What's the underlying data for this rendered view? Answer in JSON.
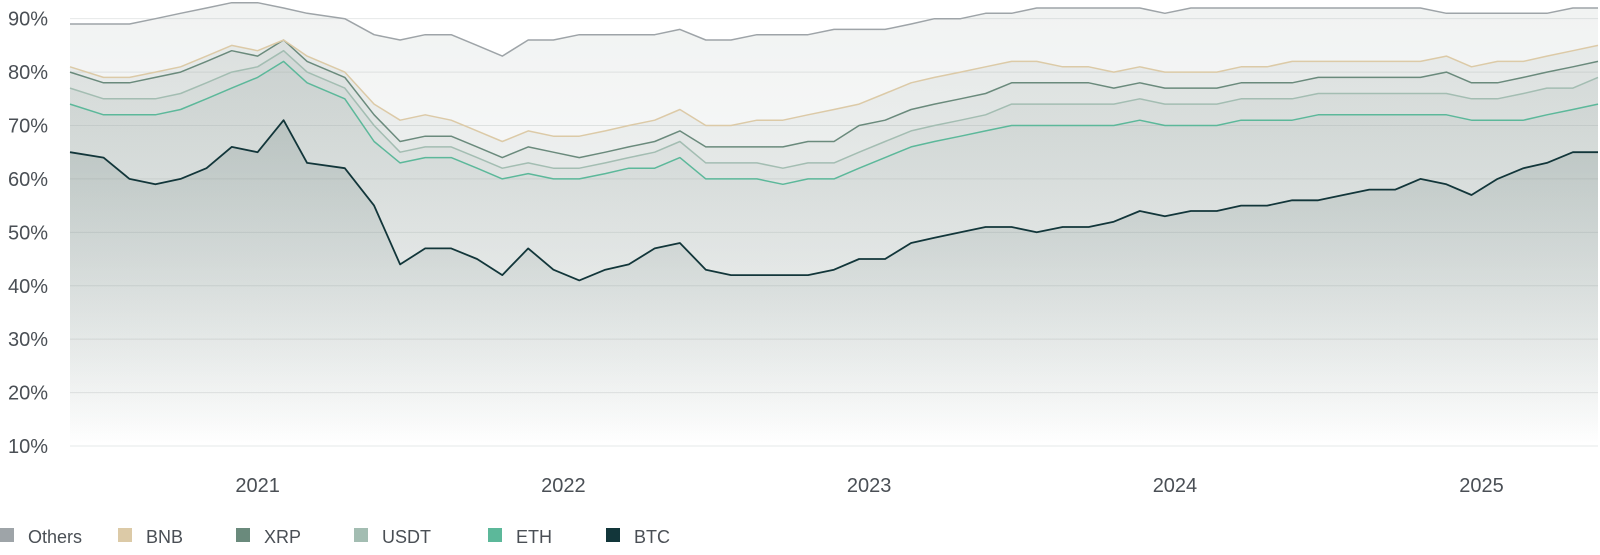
{
  "chart_data": {
    "type": "area",
    "title": "",
    "xlabel": "",
    "ylabel": "",
    "ylim": [
      10,
      92
    ],
    "y_ticks": [
      "10%",
      "20%",
      "30%",
      "40%",
      "50%",
      "60%",
      "70%",
      "80%",
      "90%"
    ],
    "y_tick_values": [
      10,
      20,
      30,
      40,
      50,
      60,
      70,
      80,
      90
    ],
    "x_ticks": [
      "2021",
      "2022",
      "2023",
      "2024",
      "2025"
    ],
    "x_tick_values": [
      "2021-01-01",
      "2022-01-01",
      "2023-01-01",
      "2024-01-01",
      "2025-01-01"
    ],
    "xlim": [
      "2020-05-22",
      "2025-05-20"
    ],
    "grid": true,
    "legend_position": "bottom-left",
    "x": [
      "2020-05-22",
      "2020-07-01",
      "2020-08-01",
      "2020-09-01",
      "2020-10-01",
      "2020-11-01",
      "2020-12-01",
      "2021-01-01",
      "2021-02-01",
      "2021-03-01",
      "2021-04-15",
      "2021-05-20",
      "2021-06-20",
      "2021-07-20",
      "2021-08-20",
      "2021-09-20",
      "2021-10-20",
      "2021-11-20",
      "2021-12-20",
      "2022-01-20",
      "2022-02-20",
      "2022-03-20",
      "2022-04-20",
      "2022-05-20",
      "2022-06-20",
      "2022-07-20",
      "2022-08-20",
      "2022-09-20",
      "2022-10-20",
      "2022-11-20",
      "2022-12-20",
      "2023-01-20",
      "2023-02-20",
      "2023-03-20",
      "2023-04-20",
      "2023-05-20",
      "2023-06-20",
      "2023-07-20",
      "2023-08-20",
      "2023-09-20",
      "2023-10-20",
      "2023-11-20",
      "2023-12-20",
      "2024-01-20",
      "2024-02-20",
      "2024-03-20",
      "2024-04-20",
      "2024-05-20",
      "2024-06-20",
      "2024-07-20",
      "2024-08-20",
      "2024-09-20",
      "2024-10-20",
      "2024-11-20",
      "2024-12-20",
      "2025-01-20",
      "2025-02-20",
      "2025-03-20",
      "2025-04-20",
      "2025-05-20"
    ],
    "series": [
      {
        "name": "BTC",
        "color": "#12363a",
        "values": [
          65,
          64,
          60,
          59,
          60,
          62,
          66,
          65,
          71,
          63,
          62,
          55,
          44,
          47,
          47,
          45,
          42,
          47,
          43,
          41,
          43,
          44,
          47,
          48,
          43,
          42,
          42,
          42,
          42,
          43,
          45,
          45,
          48,
          49,
          50,
          51,
          51,
          50,
          51,
          51,
          52,
          54,
          53,
          54,
          54,
          55,
          55,
          56,
          56,
          57,
          58,
          58,
          60,
          59,
          57,
          60,
          62,
          63,
          65,
          65
        ]
      },
      {
        "name": "ETH",
        "color": "#5cb89a",
        "values": [
          74,
          72,
          72,
          72,
          73,
          75,
          77,
          79,
          82,
          78,
          75,
          67,
          63,
          64,
          64,
          62,
          60,
          61,
          60,
          60,
          61,
          62,
          62,
          64,
          60,
          60,
          60,
          59,
          60,
          60,
          62,
          64,
          66,
          67,
          68,
          69,
          70,
          70,
          70,
          70,
          70,
          71,
          70,
          70,
          70,
          71,
          71,
          71,
          72,
          72,
          72,
          72,
          72,
          72,
          71,
          71,
          71,
          72,
          73,
          74
        ]
      },
      {
        "name": "USDT",
        "color": "#a3bdb2",
        "values": [
          77,
          75,
          75,
          75,
          76,
          78,
          80,
          81,
          84,
          80,
          77,
          70,
          65,
          66,
          66,
          64,
          62,
          63,
          62,
          62,
          63,
          64,
          65,
          67,
          63,
          63,
          63,
          62,
          63,
          63,
          65,
          67,
          69,
          70,
          71,
          72,
          74,
          74,
          74,
          74,
          74,
          75,
          74,
          74,
          74,
          75,
          75,
          75,
          76,
          76,
          76,
          76,
          76,
          76,
          75,
          75,
          76,
          77,
          77,
          79
        ]
      },
      {
        "name": "XRP",
        "color": "#6a8a7c",
        "values": [
          80,
          78,
          78,
          79,
          80,
          82,
          84,
          83,
          86,
          82,
          79,
          72,
          67,
          68,
          68,
          66,
          64,
          66,
          65,
          64,
          65,
          66,
          67,
          69,
          66,
          66,
          66,
          66,
          67,
          67,
          70,
          71,
          73,
          74,
          75,
          76,
          78,
          78,
          78,
          78,
          77,
          78,
          77,
          77,
          77,
          78,
          78,
          78,
          79,
          79,
          79,
          79,
          79,
          80,
          78,
          78,
          79,
          80,
          81,
          82
        ]
      },
      {
        "name": "BNB",
        "color": "#dccaa7",
        "values": [
          81,
          79,
          79,
          80,
          81,
          83,
          85,
          84,
          86,
          83,
          80,
          74,
          71,
          72,
          71,
          69,
          67,
          69,
          68,
          68,
          69,
          70,
          71,
          73,
          70,
          70,
          71,
          71,
          72,
          73,
          74,
          76,
          78,
          79,
          80,
          81,
          82,
          82,
          81,
          81,
          80,
          81,
          80,
          80,
          80,
          81,
          81,
          82,
          82,
          82,
          82,
          82,
          82,
          83,
          81,
          82,
          82,
          83,
          84,
          85
        ]
      },
      {
        "name": "Others",
        "color": "#9ea4a8",
        "values": [
          89,
          89,
          89,
          90,
          91,
          92,
          93,
          93,
          92,
          91,
          90,
          87,
          86,
          87,
          87,
          85,
          83,
          86,
          86,
          87,
          87,
          87,
          87,
          88,
          86,
          86,
          87,
          87,
          87,
          88,
          88,
          88,
          89,
          90,
          90,
          91,
          91,
          92,
          92,
          92,
          92,
          92,
          91,
          92,
          92,
          92,
          92,
          92,
          92,
          92,
          92,
          92,
          92,
          91,
          91,
          91,
          91,
          91,
          92,
          92
        ]
      }
    ],
    "legend": [
      {
        "name": "Others",
        "color": "#9ea4a8"
      },
      {
        "name": "BNB",
        "color": "#dccaa7"
      },
      {
        "name": "XRP",
        "color": "#6a8a7c"
      },
      {
        "name": "USDT",
        "color": "#a3bdb2"
      },
      {
        "name": "ETH",
        "color": "#5cb89a"
      },
      {
        "name": "BTC",
        "color": "#12363a"
      }
    ]
  }
}
